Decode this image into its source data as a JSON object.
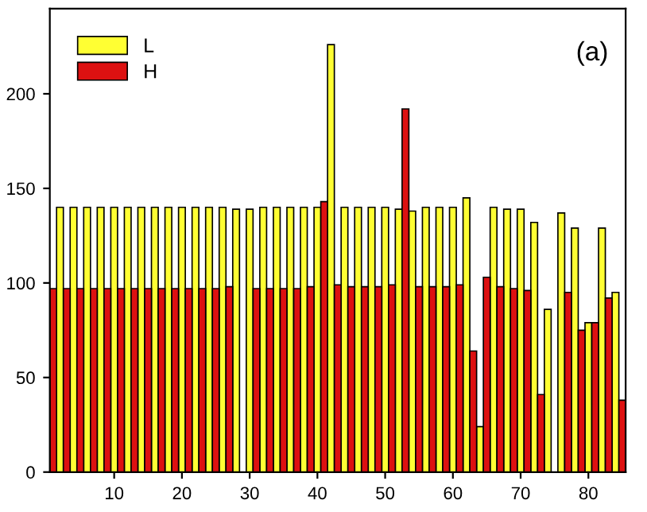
{
  "chart_data": {
    "type": "bar",
    "annotations": [
      "(a)"
    ],
    "xlim": [
      0.5,
      85.5
    ],
    "xticks": [
      10,
      20,
      30,
      40,
      50,
      60,
      70,
      80
    ],
    "ylim": [
      0,
      245
    ],
    "yticks": [
      0,
      50,
      100,
      150,
      200
    ],
    "grid": false,
    "legend": "top left",
    "series": [
      {
        "name": "L",
        "color": "#ffff33",
        "x": [
          2,
          4,
          6,
          8,
          10,
          12,
          14,
          16,
          18,
          20,
          22,
          24,
          26,
          28,
          30,
          32,
          34,
          36,
          38,
          40,
          42,
          44,
          46,
          48,
          50,
          52,
          54,
          56,
          58,
          60,
          62,
          64,
          66,
          68,
          70,
          72,
          74,
          76,
          78,
          80,
          82,
          84
        ],
        "values": [
          140,
          140,
          140,
          140,
          140,
          140,
          140,
          140,
          140,
          140,
          140,
          140,
          140,
          139,
          139,
          140,
          140,
          140,
          140,
          140,
          226,
          140,
          140,
          140,
          140,
          139,
          138,
          140,
          140,
          140,
          145,
          24,
          140,
          139,
          139,
          132,
          86,
          137,
          129,
          79,
          129,
          95
        ]
      },
      {
        "name": "H",
        "color": "#dd1111",
        "x": [
          1,
          3,
          5,
          7,
          9,
          11,
          13,
          15,
          17,
          19,
          21,
          23,
          25,
          27,
          29,
          31,
          33,
          35,
          37,
          39,
          41,
          43,
          45,
          47,
          49,
          51,
          53,
          55,
          57,
          59,
          61,
          63,
          65,
          67,
          69,
          71,
          73,
          75,
          77,
          79,
          81,
          83,
          85
        ],
        "values": [
          97,
          97,
          97,
          97,
          97,
          97,
          97,
          97,
          97,
          97,
          97,
          97,
          97,
          98,
          null,
          97,
          97,
          97,
          97,
          98,
          143,
          99,
          98,
          98,
          98,
          99,
          192,
          98,
          98,
          98,
          99,
          64,
          103,
          98,
          97,
          96,
          41,
          null,
          95,
          75,
          79,
          92,
          38
        ]
      }
    ]
  }
}
